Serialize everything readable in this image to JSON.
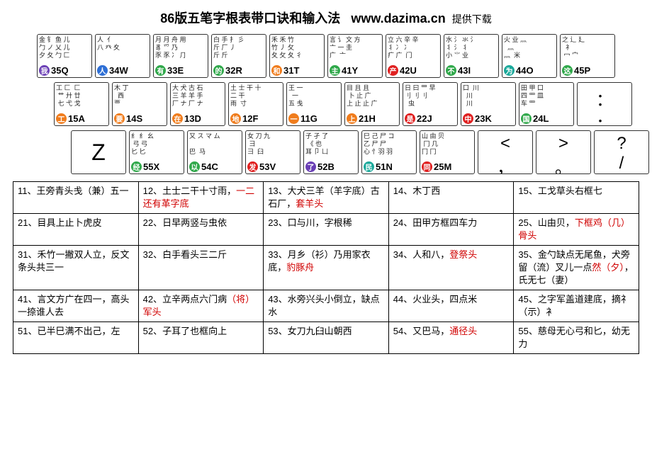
{
  "title": {
    "main": "86版五笔字根表带口诀和输入法",
    "url": "www.dazima.cn",
    "suffix": "提供下载"
  },
  "colors": {
    "purple": "#6a3fb5",
    "blue": "#2e6fd6",
    "green": "#2fa84a",
    "orange": "#f07c1c",
    "red": "#e02020",
    "teal": "#1aa89a"
  },
  "rows": [
    {
      "offset": 0,
      "keys": [
        {
          "glyphs": "金 钅 鱼 儿\n勹 ノ 乂 儿\n夕 夂 勹 匚",
          "char": "我",
          "code": "35Q",
          "color": "purple"
        },
        {
          "glyphs": "人  亻\n八 癶 夊",
          "char": "人",
          "code": "34W",
          "color": "blue"
        },
        {
          "glyphs": "月 月 舟 用\n豸 爫 乃\n豕 豕 冫 ⺆",
          "char": "有",
          "code": "33E",
          "color": "green"
        },
        {
          "glyphs": "白 手 扌 彡\n斤 厂 丿\n斤 斤",
          "char": "的",
          "code": "32R",
          "color": "green"
        },
        {
          "glyphs": "禾 禾 竹\n竹 丿 攵\n夂 攵 夂 彳",
          "char": "和",
          "code": "31T",
          "color": "orange"
        },
        {
          "glyphs": "言 讠 文 方\n亠 一 圭\n广  亠 ",
          "char": "主",
          "code": "41Y",
          "color": "green"
        },
        {
          "glyphs": "立 六 辛 辛\n丬 冫 冫\n疒 广  门",
          "char": "产",
          "code": "42U",
          "color": "red"
        },
        {
          "glyphs": "水 氵 氺 氵\n丬 氵 丬 \n小 ⺌ 业",
          "char": "不",
          "code": "43I",
          "color": "green"
        },
        {
          "glyphs": "火 业 灬\n  灬\n灬  米",
          "char": "为",
          "code": "44O",
          "color": "teal"
        },
        {
          "glyphs": "之 辶 廴\n  礻\n 冖 宀 ",
          "char": "这",
          "code": "45P",
          "color": "green"
        }
      ]
    },
    {
      "offset": 48,
      "keys": [
        {
          "glyphs": "工 匚  匚\n 艹 廾 廿\n 七 弋 戈",
          "char": "工",
          "code": "15A",
          "color": "orange"
        },
        {
          "glyphs": "木 丁\n  西\n覀",
          "char": "要",
          "code": "14S",
          "color": "orange"
        },
        {
          "glyphs": "大 犬 古 石\n三 羊 羊 手\n厂 ナ 厂 ナ",
          "char": "在",
          "code": "13D",
          "color": "orange"
        },
        {
          "glyphs": "土 士 干 十\n二 干 \n雨  寸",
          "char": "地",
          "code": "12F",
          "color": "orange"
        },
        {
          "glyphs": "王 一\n  一\n五 戋",
          "char": "一",
          "code": "11G",
          "color": "orange"
        },
        {
          "glyphs": "目 且 且\n 卜 止 广\n上 止 止 广",
          "char": "上",
          "code": "21H",
          "color": "orange"
        },
        {
          "glyphs": "日 曰 罒 早\n刂 刂 刂\n  虫",
          "char": "是",
          "code": "22J",
          "color": "red"
        },
        {
          "glyphs": "口  川\n  川\n  川",
          "char": "中",
          "code": "23K",
          "color": "red"
        },
        {
          "glyphs": "田 甲 口\n四 罒 皿 \n车 罒",
          "char": "国",
          "code": "24L",
          "color": "green"
        },
        {
          "punct": [
            "：",
            "；"
          ]
        }
      ]
    },
    {
      "offset": 96,
      "keys": [
        {
          "big": "Z"
        },
        {
          "glyphs": "纟 纟 幺\n 弓 弓\n匕 匕",
          "char": "经",
          "code": "55X",
          "color": "green"
        },
        {
          "glyphs": "又 ス マ ム\n  \n巴  马",
          "char": "以",
          "code": "54C",
          "color": "green"
        },
        {
          "glyphs": "女 刀 九\n 彐 \n彐  臼",
          "char": "发",
          "code": "53V",
          "color": "red"
        },
        {
          "glyphs": "子 孑 了\n 《 也\n耳 卩 凵",
          "char": "了",
          "code": "52B",
          "color": "purple"
        },
        {
          "glyphs": "巳 己 尸 コ\n乙 尸 尸\n心 忄羽 羽",
          "char": "民",
          "code": "51N",
          "color": "teal"
        },
        {
          "glyphs": "山 由 贝\n 冂 几\n冂 冂",
          "char": "同",
          "code": "25M",
          "color": "red"
        },
        {
          "punct": [
            "<",
            "，"
          ]
        },
        {
          "punct": [
            ">",
            "。"
          ]
        },
        {
          "punct": [
            "?",
            "/"
          ]
        }
      ]
    }
  ],
  "mnemonics": [
    [
      {
        "n": "11",
        "t": "王旁青头戋（兼）五一"
      },
      {
        "n": "12",
        "t": "土士二干十寸雨，",
        "r": "一二还有革字底"
      },
      {
        "n": "13",
        "t": "大犬三羊（羊字底）古石厂，",
        "r": "套羊头"
      },
      {
        "n": "14",
        "t": "木丁西"
      },
      {
        "n": "15",
        "t": "工戈草头右框七"
      }
    ],
    [
      {
        "n": "21",
        "t": "目具上止卜虎皮"
      },
      {
        "n": "22",
        "t": "日早两竖与虫依"
      },
      {
        "n": "23",
        "t": "口与川，字根稀"
      },
      {
        "n": "24",
        "t": "田甲方框四车力"
      },
      {
        "n": "25",
        "t": "山由贝，",
        "r": "下框鸡（几）骨头"
      }
    ],
    [
      {
        "n": "31",
        "t": "禾竹一撇双人立，反文条头共三一"
      },
      {
        "n": "32",
        "t": "白手看头三二斤"
      },
      {
        "n": "33",
        "t": "月乡（衫）乃用家衣底，",
        "r": "豹豚舟"
      },
      {
        "n": "34",
        "t": "人和八，",
        "r": "登祭头"
      },
      {
        "n": "35",
        "t": "金勺缺点无尾鱼，犬旁留（流）叉儿一点",
        "r": "然（夕）",
        "t2": "，氏无七（妻）"
      }
    ],
    [
      {
        "n": "41",
        "t": "言文方广在四一，高头一捺谁人去"
      },
      {
        "n": "42",
        "t": "立辛两点六门病",
        "r": "（将）军头"
      },
      {
        "n": "43",
        "t": "水旁兴头小倒立，缺点水"
      },
      {
        "n": "44",
        "t": "火业头，四点米"
      },
      {
        "n": "45",
        "t": "之字军盖道建底，摘礻（示）衤"
      }
    ],
    [
      {
        "n": "51",
        "t": "已半巳满不出己，左"
      },
      {
        "n": "52",
        "t": "子耳了也框向上"
      },
      {
        "n": "53",
        "t": "女刀九臼山朝西"
      },
      {
        "n": "54",
        "t": "又巴马，",
        "r": "通径头"
      },
      {
        "n": "55",
        "t": "慈母无心弓和匕，幼无力"
      }
    ]
  ]
}
